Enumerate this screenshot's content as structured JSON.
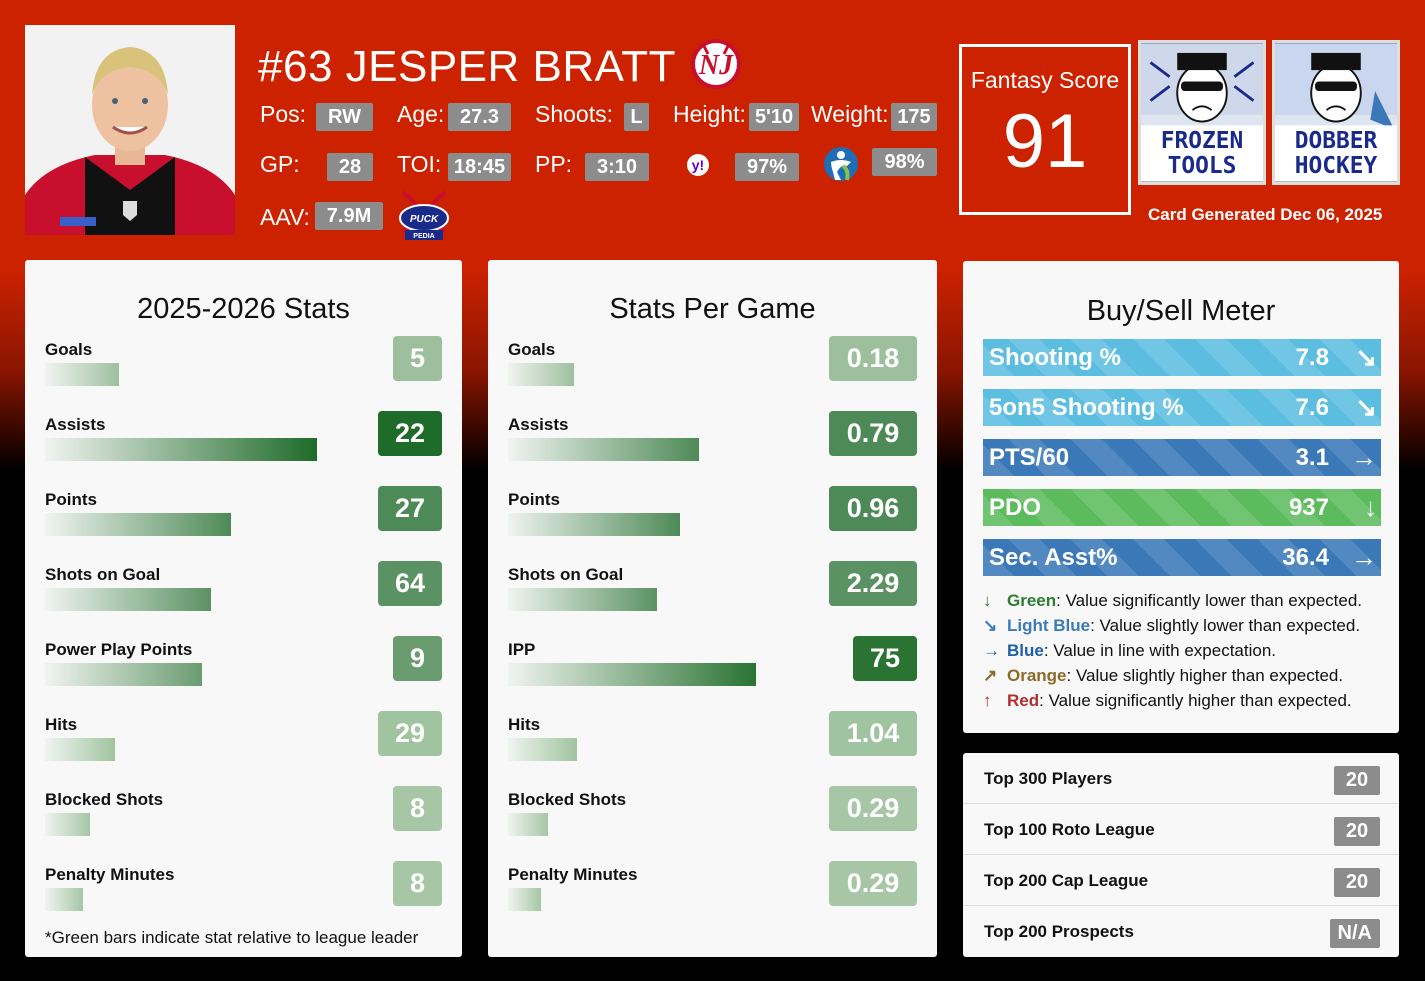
{
  "player": {
    "name": "#63 JESPER BRATT",
    "team_logo_icon": "new-jersey-devils-logo"
  },
  "header": {
    "pos_label": "Pos:",
    "pos": "RW",
    "age_label": "Age:",
    "age": "27.3",
    "shoots_label": "Shoots:",
    "shoots": "L",
    "height_label": "Height:",
    "height": "5'10",
    "weight_label": "Weight:",
    "weight": "175",
    "gp_label": "GP:",
    "gp": "28",
    "toi_label": "TOI:",
    "toi": "18:45",
    "pp_label": "PP:",
    "pp": "3:10",
    "yahoo_icon": "yahoo-icon",
    "yahoo": "97%",
    "espn_icon": "espn-icon",
    "espn": "98%",
    "aav_label": "AAV:",
    "aav": "7.9M",
    "puckpedia_icon": "puckpedia-logo"
  },
  "fantasy": {
    "label": "Fantasy Score",
    "value": "91"
  },
  "brands": [
    "frozen-tools-logo",
    "dobber-hockey-logo"
  ],
  "card_generated": "Card Generated Dec 06, 2025",
  "season_stats": {
    "title": "2025-2026 Stats",
    "items": [
      {
        "label": "Goals",
        "value": "5",
        "fill": 0.23,
        "shade": "#9ebf9e"
      },
      {
        "label": "Assists",
        "value": "22",
        "fill": 0.85,
        "shade": "#1f6b2a"
      },
      {
        "label": "Points",
        "value": "27",
        "fill": 0.58,
        "shade": "#4e8a57"
      },
      {
        "label": "Shots on Goal",
        "value": "64",
        "fill": 0.52,
        "shade": "#5b9263"
      },
      {
        "label": "Power Play Points",
        "value": "9",
        "fill": 0.49,
        "shade": "#6a9c70"
      },
      {
        "label": "Hits",
        "value": "29",
        "fill": 0.22,
        "shade": "#a0c4a0"
      },
      {
        "label": "Blocked Shots",
        "value": "8",
        "fill": 0.14,
        "shade": "#a6c6a6"
      },
      {
        "label": "Penalty Minutes",
        "value": "8",
        "fill": 0.12,
        "shade": "#a6c6a6"
      }
    ],
    "footnote": "*Green bars indicate stat relative to league leader"
  },
  "per_game_stats": {
    "title": "Stats Per Game",
    "items": [
      {
        "label": "Goals",
        "value": "0.18",
        "fill": 0.2,
        "shade": "#9ebf9e"
      },
      {
        "label": "Assists",
        "value": "0.79",
        "fill": 0.58,
        "shade": "#4e8a57"
      },
      {
        "label": "Points",
        "value": "0.96",
        "fill": 0.52,
        "shade": "#4e8a57"
      },
      {
        "label": "Shots on Goal",
        "value": "2.29",
        "fill": 0.45,
        "shade": "#5b9263"
      },
      {
        "label": "IPP",
        "value": "75",
        "fill": 0.75,
        "shade": "#2a7332"
      },
      {
        "label": "Hits",
        "value": "1.04",
        "fill": 0.21,
        "shade": "#a0c4a0"
      },
      {
        "label": "Blocked Shots",
        "value": "0.29",
        "fill": 0.12,
        "shade": "#a6c6a6"
      },
      {
        "label": "Penalty Minutes",
        "value": "0.29",
        "fill": 0.1,
        "shade": "#a6c6a6"
      }
    ]
  },
  "buy_sell": {
    "title": "Buy/Sell Meter",
    "rows": [
      {
        "label": "Shooting %",
        "value": "7.8",
        "arrow": "↘",
        "color": "#5bbde0"
      },
      {
        "label": "5on5 Shooting %",
        "value": "7.6",
        "arrow": "↘",
        "color": "#5bbde0"
      },
      {
        "label": "PTS/60",
        "value": "3.1",
        "arrow": "→",
        "color": "#3a78b8"
      },
      {
        "label": "PDO",
        "value": "937",
        "arrow": "↓",
        "color": "#5cbb5c"
      },
      {
        "label": "Sec. Asst%",
        "value": "36.4",
        "arrow": "→",
        "color": "#3a78b8"
      }
    ],
    "legend": [
      {
        "arrow": "↓",
        "key": "Green",
        "text": ": Value significantly lower than expected.",
        "color": "#2e7d32"
      },
      {
        "arrow": "↘",
        "key": "Light Blue",
        "text": ": Value slightly lower than expected.",
        "color": "#3a7bb8"
      },
      {
        "arrow": "→",
        "key": "Blue",
        "text": ": Value in line with expectation.",
        "color": "#1f5fa8"
      },
      {
        "arrow": "↗",
        "key": "Orange",
        "text": ": Value slightly higher than expected.",
        "color": "#8b6a2a"
      },
      {
        "arrow": "↑",
        "key": "Red",
        "text": ": Value significantly higher than expected.",
        "color": "#b03030"
      }
    ]
  },
  "rankings": [
    {
      "label": "Top 300 Players",
      "value": "20"
    },
    {
      "label": "Top 100 Roto League",
      "value": "20"
    },
    {
      "label": "Top 200 Cap League",
      "value": "20"
    },
    {
      "label": "Top 200 Prospects",
      "value": "N/A"
    }
  ]
}
